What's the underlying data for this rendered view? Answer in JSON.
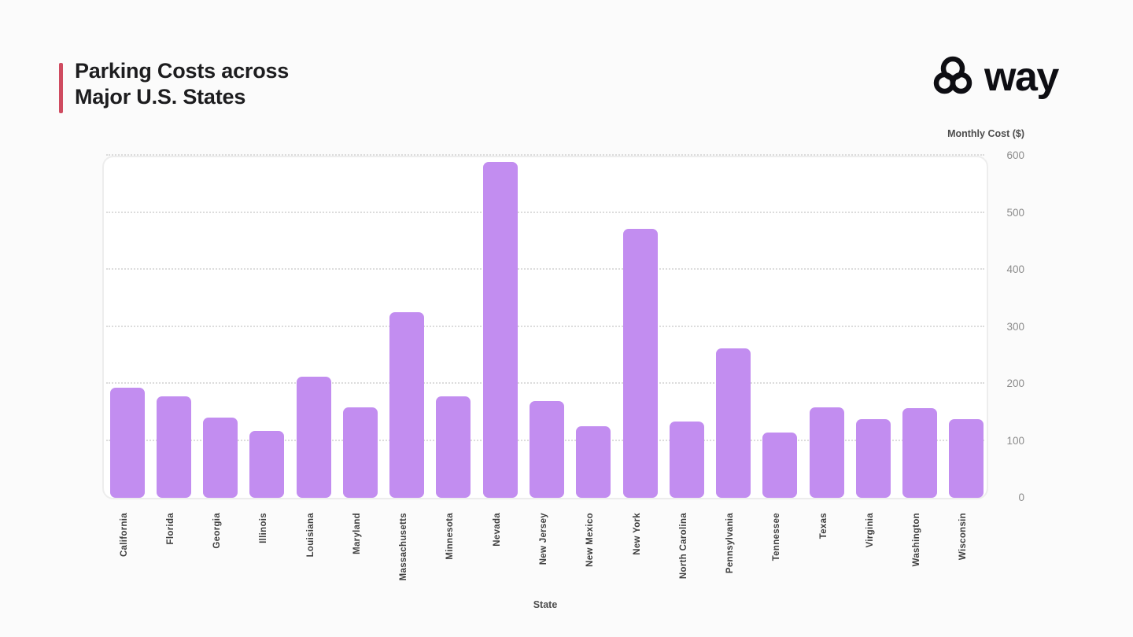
{
  "header": {
    "title_line1": "Parking Costs across",
    "title_line2": "Major U.S. States",
    "accent_color": "#cf4b60",
    "logo_text": "way",
    "logo_icon": "three-interlocked-rings",
    "logo_color": "#0e0e13"
  },
  "chart_data": {
    "type": "bar",
    "title": "Parking Costs across Major U.S. States",
    "xlabel": "State",
    "ylabel": "Monthly Cost ($)",
    "ylim": [
      0,
      600
    ],
    "yticks": [
      0,
      100,
      200,
      300,
      400,
      500,
      600
    ],
    "grid": "horizontal dotted gridlines",
    "legend_position": "none",
    "bar_color": "#c28df0",
    "categories": [
      "California",
      "Florida",
      "Georgia",
      "Illinois",
      "Louisiana",
      "Maryland",
      "Massachusetts",
      "Minnesota",
      "Nevada",
      "New Jersey",
      "New Mexico",
      "New York",
      "North Carolina",
      "Pennsylvania",
      "Tennessee",
      "Texas",
      "Virginia",
      "Washington",
      "Wisconsin"
    ],
    "values": [
      193,
      178,
      140,
      117,
      212,
      158,
      325,
      178,
      589,
      170,
      125,
      472,
      134,
      262,
      115,
      159,
      138,
      157,
      138
    ]
  }
}
